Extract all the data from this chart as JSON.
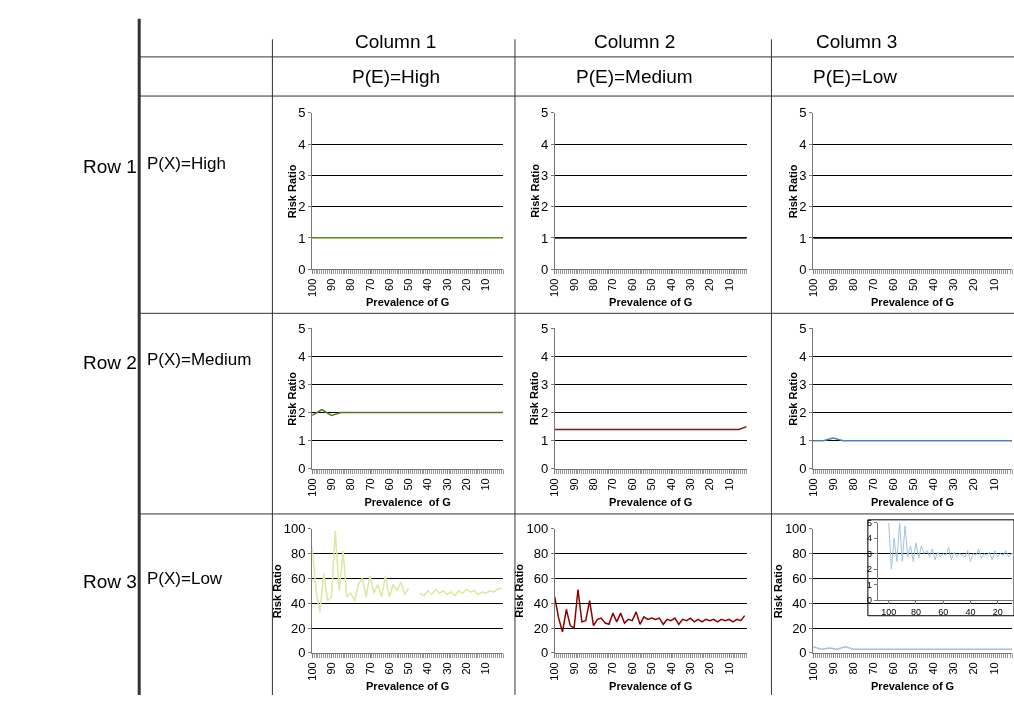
{
  "chart_data": [
    {
      "type": "other",
      "annotations": [
        "Column 1",
        "Column 2",
        "Column 3",
        "P(E)=High",
        "P(E)=Medium",
        "P(E)=Low",
        "Row 1",
        "P(X)=High",
        "Row 2",
        "P(X)=Medium",
        "Row 3",
        "P(X)=Low"
      ]
    },
    {
      "type": "line",
      "xlabel": "Prevalence of G",
      "ylabel": "Risk Ratio",
      "xlim": [
        100,
        1
      ],
      "xticks": [
        100,
        90,
        80,
        70,
        60,
        50,
        40,
        30,
        20,
        10
      ],
      "ylim": [
        0,
        5
      ],
      "yticks": [
        0,
        1,
        2,
        3,
        4,
        5
      ],
      "grid": "y",
      "x": [
        100,
        95,
        90,
        85,
        80,
        75,
        70,
        65,
        60,
        55,
        50,
        45,
        40,
        35,
        30,
        25,
        20,
        15,
        10,
        5,
        1
      ],
      "series": [
        {
          "color": "#8db33a",
          "values": [
            1.0,
            1.0,
            1.0,
            1.0,
            1.0,
            1.0,
            1.0,
            1.0,
            1.0,
            1.0,
            1.0,
            1.0,
            1.0,
            1.0,
            1.0,
            1.0,
            1.0,
            1.0,
            1.0,
            1.0,
            1.0
          ]
        }
      ]
    },
    {
      "type": "line",
      "xlabel": "Prevalence of G",
      "ylabel": "Risk Ratio",
      "xlim": [
        100,
        1
      ],
      "xticks": [
        100,
        90,
        80,
        70,
        60,
        50,
        40,
        30,
        20,
        10
      ],
      "ylim": [
        0,
        5
      ],
      "yticks": [
        0,
        1,
        2,
        3,
        4,
        5
      ],
      "grid": "y",
      "x": [
        100,
        95,
        90,
        85,
        80,
        75,
        70,
        65,
        60,
        55,
        50,
        45,
        40,
        35,
        30,
        25,
        20,
        15,
        10,
        5,
        1
      ],
      "series": [
        {
          "color": "#1a1a1a",
          "values": [
            1.0,
            1.0,
            1.0,
            1.0,
            1.0,
            1.0,
            1.0,
            1.0,
            1.0,
            1.0,
            1.0,
            1.0,
            1.0,
            1.0,
            1.0,
            1.0,
            1.0,
            1.0,
            1.0,
            1.0,
            1.0
          ]
        }
      ]
    },
    {
      "type": "line",
      "xlabel": "Prevalence of G",
      "ylabel": "Risk Ratio",
      "xlim": [
        100,
        1
      ],
      "xticks": [
        100,
        90,
        80,
        70,
        60,
        50,
        40,
        30,
        20,
        10
      ],
      "ylim": [
        0,
        5
      ],
      "yticks": [
        0,
        1,
        2,
        3,
        4,
        5
      ],
      "grid": "y",
      "x": [
        100,
        90,
        80,
        70,
        60,
        50,
        40,
        30,
        20,
        10,
        1
      ],
      "series": [
        {
          "color": "#000000",
          "values": [
            1.0,
            1.0,
            1.0,
            1.0,
            1.0,
            1.0,
            1.0,
            1.0,
            1.0,
            1.0,
            1.0
          ]
        }
      ]
    },
    {
      "type": "line",
      "xlabel": "Prevalence  of G",
      "ylabel": "Risk Ratio",
      "xlim": [
        100,
        1
      ],
      "xticks": [
        100,
        90,
        80,
        70,
        60,
        50,
        40,
        30,
        20,
        10
      ],
      "ylim": [
        0,
        5
      ],
      "yticks": [
        0,
        1,
        2,
        3,
        4,
        5
      ],
      "grid": "y",
      "x": [
        100,
        95,
        90,
        85,
        80,
        75,
        70,
        65,
        60,
        55,
        50,
        45,
        40,
        35,
        30,
        25,
        20,
        15,
        10,
        5,
        1
      ],
      "series": [
        {
          "color": "#5b7a1e",
          "values": [
            1.9,
            2.1,
            1.9,
            2.0,
            2.0,
            2.0,
            2.0,
            2.0,
            2.0,
            2.0,
            2.0,
            2.0,
            2.0,
            2.0,
            2.0,
            2.0,
            2.0,
            2.0,
            2.0,
            2.0,
            2.0
          ]
        }
      ]
    },
    {
      "type": "line",
      "xlabel": "Prevalence of G",
      "ylabel": "Risk Ratio",
      "xlim": [
        100,
        1
      ],
      "xticks": [
        100,
        90,
        80,
        70,
        60,
        50,
        40,
        30,
        20,
        10
      ],
      "ylim": [
        0,
        5
      ],
      "yticks": [
        0,
        1,
        2,
        3,
        4,
        5
      ],
      "grid": "y",
      "x": [
        100,
        95,
        90,
        85,
        80,
        75,
        70,
        65,
        60,
        55,
        50,
        45,
        40,
        35,
        30,
        25,
        20,
        15,
        10,
        5,
        1
      ],
      "series": [
        {
          "color": "#7a1a1a",
          "values": [
            1.4,
            1.4,
            1.4,
            1.4,
            1.4,
            1.4,
            1.4,
            1.4,
            1.4,
            1.4,
            1.4,
            1.4,
            1.4,
            1.4,
            1.4,
            1.4,
            1.4,
            1.4,
            1.4,
            1.4,
            1.5
          ]
        }
      ]
    },
    {
      "type": "line",
      "xlabel": "Prevalence of G",
      "ylabel": "Risk Ratio",
      "xlim": [
        100,
        1
      ],
      "xticks": [
        100,
        90,
        80,
        70,
        60,
        50,
        40,
        30,
        20,
        10
      ],
      "ylim": [
        0,
        5
      ],
      "yticks": [
        0,
        1,
        2,
        3,
        4,
        5
      ],
      "grid": "y",
      "x": [
        100,
        95,
        90,
        85,
        80,
        75,
        70,
        65,
        60,
        55,
        50,
        45,
        40,
        35,
        30,
        25,
        20,
        15,
        10,
        5,
        1
      ],
      "series": [
        {
          "color": "#4f81bd",
          "values": [
            1.0,
            1.0,
            1.1,
            1.0,
            1.0,
            1.0,
            1.0,
            1.0,
            1.0,
            1.0,
            1.0,
            1.0,
            1.0,
            1.0,
            1.0,
            1.0,
            1.0,
            1.0,
            1.0,
            1.0,
            1.0
          ]
        }
      ]
    },
    {
      "type": "line",
      "xlabel": "Prevalence of G",
      "ylabel": "Risk Ratio",
      "xlim": [
        100,
        1
      ],
      "xticks": [
        100,
        90,
        80,
        70,
        60,
        50,
        40,
        30,
        20,
        10
      ],
      "ylim": [
        0,
        100
      ],
      "yticks": [
        0,
        20,
        40,
        60,
        80,
        100
      ],
      "grid": "y",
      "x": [
        100,
        98,
        96,
        94,
        92,
        90,
        88,
        86,
        84,
        82,
        80,
        78,
        76,
        74,
        72,
        70,
        68,
        66,
        64,
        62,
        60,
        58,
        56,
        54,
        52,
        50,
        48,
        46,
        44,
        42,
        40,
        38,
        36,
        34,
        32,
        30,
        28,
        26,
        24,
        22,
        20,
        18,
        16,
        14,
        12,
        10,
        8,
        6,
        4,
        2
      ],
      "series": [
        {
          "color": "#dfe6a0",
          "values": [
            85,
            50,
            33,
            64,
            42,
            45,
            98,
            50,
            82,
            45,
            48,
            42,
            55,
            60,
            45,
            62,
            48,
            55,
            45,
            62,
            45,
            55,
            50,
            57,
            47,
            52,
            null,
            null,
            48,
            46,
            50,
            47,
            51,
            48,
            50,
            47,
            49,
            46,
            50,
            48,
            51,
            49,
            50,
            47,
            49,
            48,
            50,
            49,
            51,
            52
          ]
        }
      ]
    },
    {
      "type": "line",
      "xlabel": "Prevalence of G",
      "ylabel": "Risk Ratio",
      "xlim": [
        100,
        1
      ],
      "xticks": [
        100,
        90,
        80,
        70,
        60,
        50,
        40,
        30,
        20,
        10
      ],
      "ylim": [
        0,
        100
      ],
      "yticks": [
        0,
        20,
        40,
        60,
        80,
        100
      ],
      "grid": "y",
      "x": [
        100,
        98,
        96,
        94,
        92,
        90,
        88,
        86,
        84,
        82,
        80,
        78,
        76,
        74,
        72,
        70,
        68,
        66,
        64,
        62,
        60,
        58,
        56,
        54,
        52,
        50,
        48,
        46,
        44,
        42,
        40,
        38,
        36,
        34,
        32,
        30,
        28,
        26,
        24,
        22,
        20,
        18,
        16,
        14,
        12,
        10,
        8,
        6,
        4,
        2
      ],
      "series": [
        {
          "color": "#8b0000",
          "values": [
            45,
            28,
            17,
            35,
            22,
            20,
            51,
            25,
            26,
            42,
            22,
            27,
            28,
            24,
            23,
            32,
            25,
            32,
            24,
            27,
            26,
            33,
            23,
            29,
            27,
            28,
            27,
            28,
            23,
            27,
            26,
            28,
            23,
            27,
            26,
            28,
            25,
            27,
            25,
            27,
            26,
            27,
            25,
            27,
            26,
            27,
            25,
            27,
            26,
            30
          ]
        }
      ]
    },
    {
      "type": "line",
      "xlabel": "Prevalence of G",
      "ylabel": "Risk Ratio",
      "xlim": [
        100,
        1
      ],
      "xticks": [
        100,
        90,
        80,
        70,
        60,
        50,
        40,
        30,
        20,
        10
      ],
      "ylim": [
        0,
        100
      ],
      "yticks": [
        0,
        20,
        40,
        60,
        80,
        100
      ],
      "grid": "y",
      "x": [
        100,
        96,
        92,
        88,
        84,
        80,
        76,
        72,
        68,
        64,
        60,
        56,
        52,
        48,
        44,
        40,
        36,
        32,
        28,
        24,
        20,
        16,
        12,
        8,
        4,
        1
      ],
      "series": [
        {
          "color": "#9dc3e6",
          "values": [
            5,
            3,
            4,
            3,
            5,
            3,
            3,
            3,
            3,
            3,
            3,
            3,
            3,
            3,
            3,
            3,
            3,
            3,
            3,
            3,
            3,
            3,
            3,
            3,
            3,
            3
          ]
        }
      ]
    },
    {
      "type": "line",
      "xlim": [
        108,
        8
      ],
      "xticks": [
        100,
        80,
        60,
        40,
        20
      ],
      "ylim": [
        0,
        5
      ],
      "yticks": [
        0,
        1,
        2,
        3,
        4,
        5
      ],
      "grid": false,
      "x": [
        100,
        98,
        96,
        94,
        92,
        90,
        88,
        86,
        84,
        82,
        80,
        78,
        76,
        74,
        72,
        70,
        68,
        66,
        64,
        62,
        60,
        58,
        56,
        54,
        52,
        50,
        48,
        46,
        44,
        42,
        40,
        38,
        36,
        34,
        32,
        30,
        28,
        26,
        24,
        22,
        20,
        18,
        16,
        14,
        12,
        10,
        8
      ],
      "series": [
        {
          "color": "#9dc3e6",
          "values": [
            5,
            2,
            4,
            2.5,
            5,
            2.5,
            4.8,
            2.8,
            3.5,
            2.5,
            3.7,
            2.7,
            3.5,
            3,
            3.2,
            2.8,
            3.3,
            2.6,
            3.1,
            2.8,
            3,
            2.9,
            3.4,
            2.6,
            3.1,
            2.8,
            3,
            2.9,
            2.8,
            3.2,
            2.5,
            3,
            2.9,
            3.3,
            2.7,
            3,
            2.9,
            3.1,
            2.6,
            3.2,
            2.8,
            3,
            2.9,
            3.2,
            2.8,
            3,
            2.9
          ]
        }
      ]
    }
  ]
}
